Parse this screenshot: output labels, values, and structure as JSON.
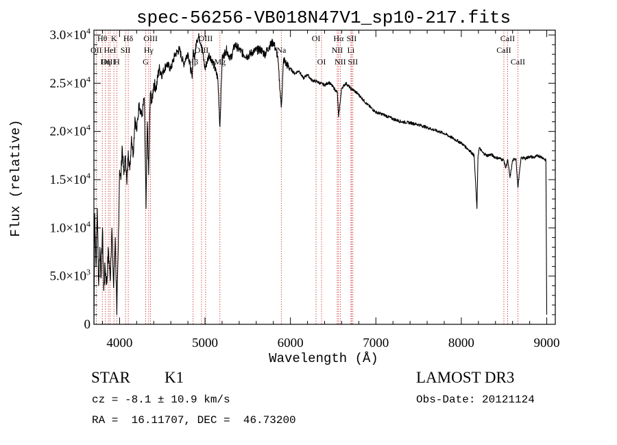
{
  "chart_data": {
    "type": "line",
    "title": "spec-56256-VB018N47V1_sp10-217.fits",
    "xlabel": "Wavelength (Å)",
    "ylabel": "Flux (relative)",
    "xlim": [
      3700,
      9100
    ],
    "ylim": [
      0,
      30500
    ],
    "x_ticks": [
      4000,
      5000,
      6000,
      7000,
      8000,
      9000
    ],
    "x_tick_labels": [
      "4000",
      "5000",
      "6000",
      "7000",
      "8000",
      "9000"
    ],
    "y_ticks": [
      0,
      5000,
      10000,
      15000,
      20000,
      25000,
      30000
    ],
    "y_tick_labels": [
      {
        "mant": "0",
        "exp": ""
      },
      {
        "mant": "5.0×10",
        "exp": "3"
      },
      {
        "mant": "1.0×10",
        "exp": "4"
      },
      {
        "mant": "1.5×10",
        "exp": "4"
      },
      {
        "mant": "2.0×10",
        "exp": "4"
      },
      {
        "mant": "2.5×10",
        "exp": "4"
      },
      {
        "mant": "3.0×10",
        "exp": "4"
      }
    ],
    "series": [
      {
        "name": "flux",
        "x": [
          3700,
          3710,
          3725,
          3740,
          3755,
          3770,
          3785,
          3800,
          3815,
          3830,
          3850,
          3870,
          3890,
          3910,
          3930,
          3950,
          3968,
          3985,
          4000,
          4015,
          4030,
          4050,
          4070,
          4085,
          4102,
          4120,
          4140,
          4160,
          4180,
          4200,
          4230,
          4260,
          4290,
          4310,
          4325,
          4340,
          4360,
          4380,
          4400,
          4430,
          4460,
          4500,
          4550,
          4600,
          4650,
          4700,
          4750,
          4800,
          4850,
          4861,
          4880,
          4900,
          4930,
          4960,
          5000,
          5050,
          5100,
          5150,
          5175,
          5200,
          5250,
          5300,
          5350,
          5400,
          5450,
          5500,
          5550,
          5600,
          5650,
          5700,
          5750,
          5800,
          5850,
          5893,
          5920,
          5950,
          6000,
          6050,
          6100,
          6150,
          6200,
          6250,
          6300,
          6350,
          6400,
          6450,
          6500,
          6550,
          6563,
          6600,
          6650,
          6700,
          6750,
          6800,
          6850,
          6900,
          6950,
          7000,
          7100,
          7200,
          7300,
          7400,
          7500,
          7600,
          7700,
          7800,
          7900,
          8000,
          8100,
          8150,
          8183,
          8195,
          8210,
          8250,
          8300,
          8350,
          8400,
          8450,
          8498,
          8520,
          8542,
          8570,
          8600,
          8640,
          8662,
          8700,
          8750,
          8800,
          8850,
          8900,
          8950,
          8990,
          9000
        ],
        "y": [
          0,
          11500,
          6000,
          12000,
          4000,
          8000,
          5000,
          10000,
          3500,
          6000,
          4200,
          7800,
          4500,
          10000,
          3800,
          9000,
          1000,
          8000,
          16000,
          15000,
          18500,
          15500,
          17500,
          14500,
          18000,
          16000,
          19500,
          17500,
          21500,
          20000,
          23000,
          21500,
          23500,
          12000,
          21000,
          15500,
          24000,
          23000,
          25000,
          24500,
          26500,
          26000,
          27000,
          26500,
          28000,
          28500,
          27000,
          28200,
          25500,
          28500,
          27500,
          29500,
          29800,
          29000,
          26500,
          28000,
          27000,
          25500,
          20500,
          27500,
          28500,
          27500,
          29000,
          28500,
          28000,
          27800,
          28200,
          28400,
          28500,
          28000,
          28800,
          29300,
          27800,
          22500,
          27500,
          27000,
          26500,
          26000,
          26300,
          25500,
          25900,
          25300,
          25200,
          25000,
          24800,
          25100,
          24600,
          24000,
          21500,
          24500,
          25000,
          24500,
          24200,
          23800,
          23300,
          22800,
          22400,
          22000,
          21700,
          21300,
          21000,
          20900,
          20700,
          20400,
          20100,
          19800,
          19300,
          18800,
          18000,
          17500,
          12000,
          17400,
          18300,
          17800,
          17500,
          17600,
          17300,
          17200,
          17000,
          16200,
          17100,
          15200,
          17000,
          17200,
          14200,
          17300,
          17200,
          17400,
          17300,
          17500,
          17300,
          17000,
          1000
        ]
      }
    ],
    "spectral_lines": [
      {
        "label": "Hθ",
        "x": 3798,
        "row": 0
      },
      {
        "label": "OII",
        "x": 3727,
        "row": 1
      },
      {
        "label": "OIII",
        "x": 3869,
        "row": 2
      },
      {
        "label": "K",
        "x": 3934,
        "row": 0
      },
      {
        "label": "HeI",
        "x": 3889,
        "row": 1
      },
      {
        "label": "Hη",
        "x": 3835,
        "row": 2
      },
      {
        "label": "Hδ",
        "x": 4102,
        "row": 0
      },
      {
        "label": "SII",
        "x": 4070,
        "row": 1
      },
      {
        "label": "H",
        "x": 3968,
        "row": 2
      },
      {
        "label": "OIII",
        "x": 4363,
        "row": 0
      },
      {
        "label": "Hγ",
        "x": 4341,
        "row": 1
      },
      {
        "label": "G",
        "x": 4305,
        "row": 2
      },
      {
        "label": "OIII",
        "x": 5007,
        "row": 0
      },
      {
        "label": "OIII",
        "x": 4959,
        "row": 1
      },
      {
        "label": "Hβ",
        "x": 4861,
        "row": 2
      },
      {
        "label": "Mg",
        "x": 5175,
        "row": 2
      },
      {
        "label": "Na",
        "x": 5893,
        "row": 1
      },
      {
        "label": "OI",
        "x": 6300,
        "row": 0
      },
      {
        "label": "OI",
        "x": 6364,
        "row": 2
      },
      {
        "label": "Hα",
        "x": 6563,
        "row": 0
      },
      {
        "label": "NII",
        "x": 6548,
        "row": 1
      },
      {
        "label": "NII",
        "x": 6583,
        "row": 2
      },
      {
        "label": "SII",
        "x": 6716,
        "row": 0
      },
      {
        "label": "Li",
        "x": 6708,
        "row": 1
      },
      {
        "label": "SII",
        "x": 6731,
        "row": 2
      },
      {
        "label": "CaII",
        "x": 8542,
        "row": 0
      },
      {
        "label": "CaII",
        "x": 8498,
        "row": 1
      },
      {
        "label": "CaII",
        "x": 8662,
        "row": 2
      }
    ]
  },
  "caption": {
    "object_class": "STAR",
    "subclass": "K1",
    "survey": "LAMOST DR3",
    "cz": "cz = -8.1 ± 10.9 km/s",
    "obs_date": "Obs-Date: 20121124",
    "coords": "RA =  16.11707, DEC =  46.73200"
  },
  "colors": {
    "line_marker": "#cc2222",
    "spectrum": "#000000",
    "axes": "#000000"
  }
}
